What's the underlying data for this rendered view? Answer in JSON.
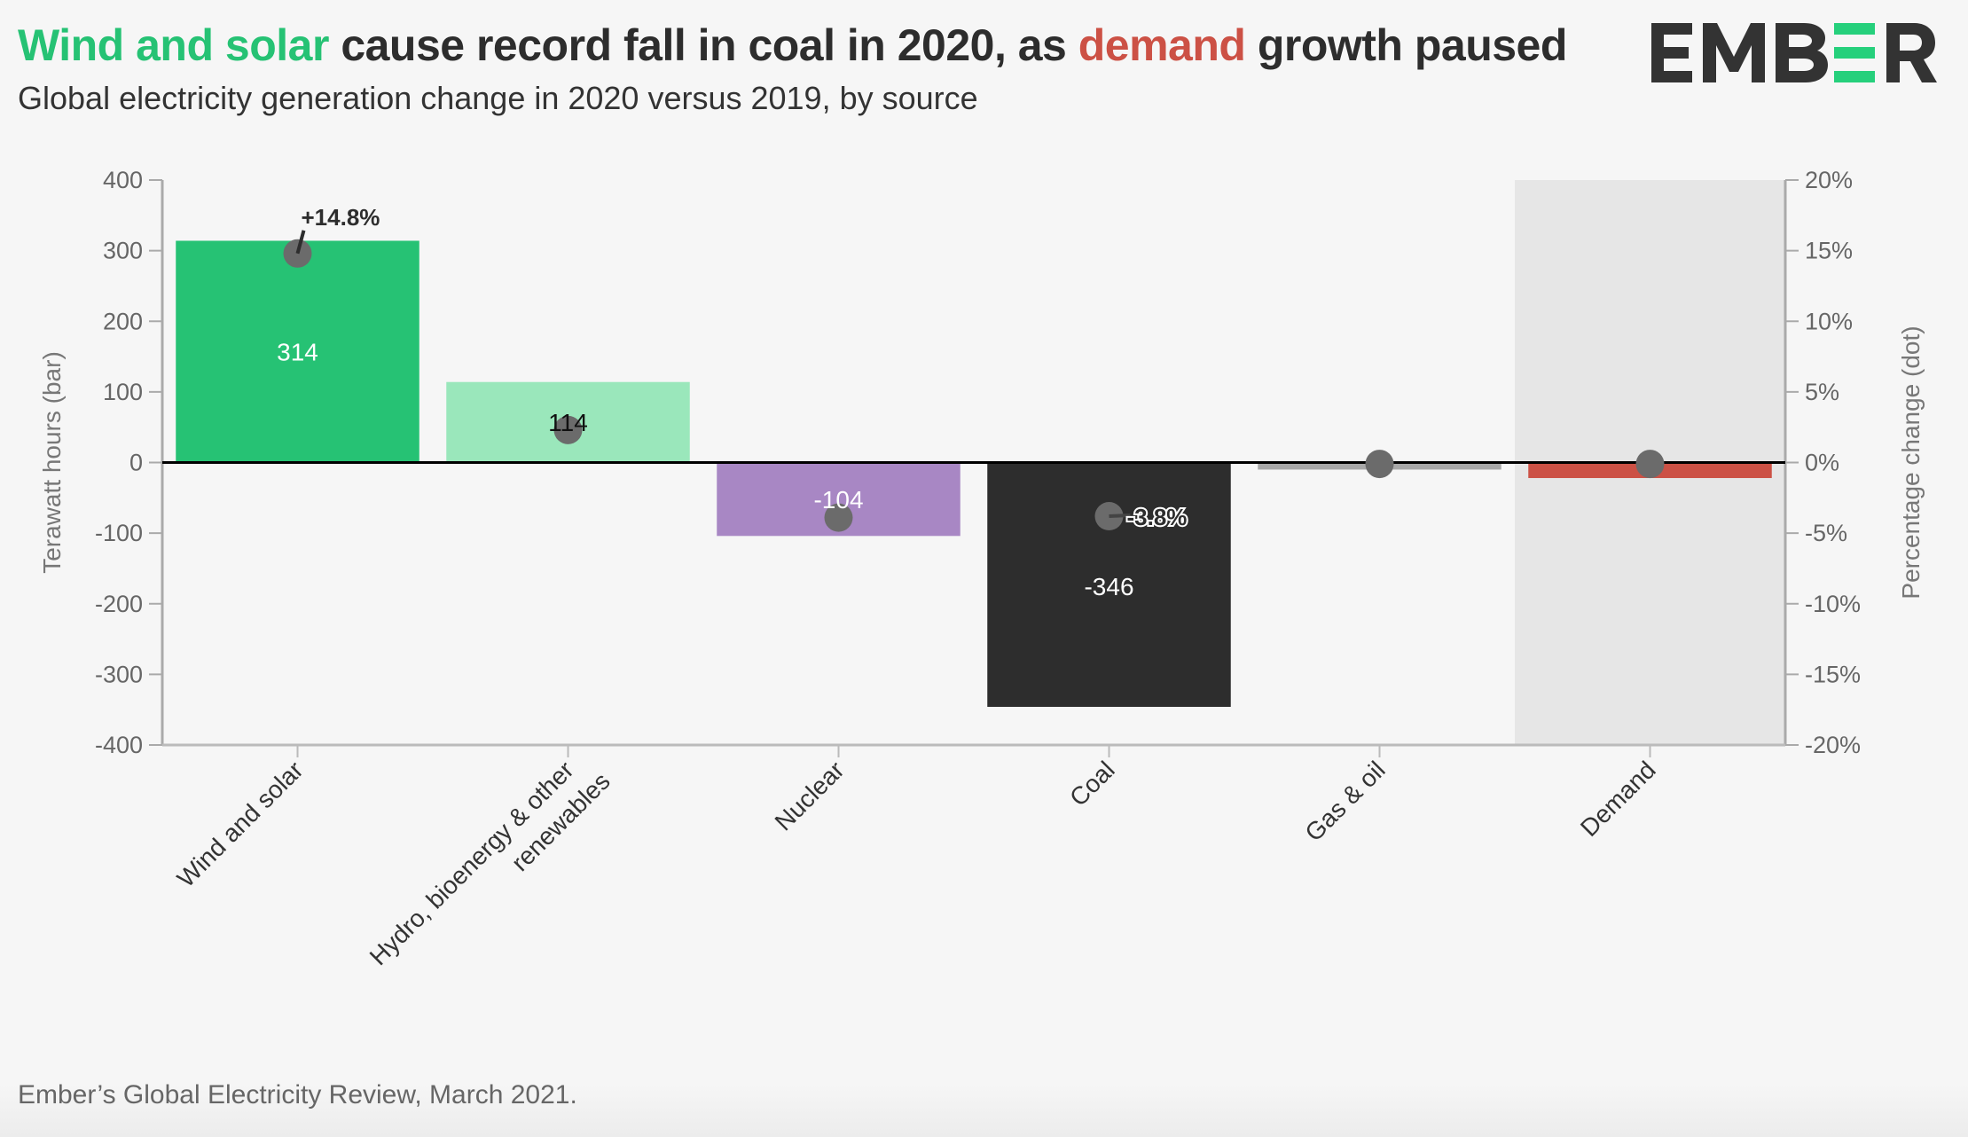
{
  "header": {
    "title_parts": [
      {
        "text": "Wind and solar",
        "color": "#26c274"
      },
      {
        "text": " cause record fall in coal in 2020, as ",
        "color": "#2d2d2d"
      },
      {
        "text": "demand",
        "color": "#cc5145"
      },
      {
        "text": " growth paused",
        "color": "#2d2d2d"
      }
    ],
    "subtitle": "Global electricity generation change in 2020 versus 2019, by source",
    "logo_text": "EMBER"
  },
  "footer": {
    "source": "Ember’s Global Electricity Review, March 2021."
  },
  "chart_data": {
    "type": "bar",
    "title": "Wind and solar cause record fall in coal in 2020, as demand growth paused",
    "subtitle": "Global electricity generation change in 2020 versus 2019, by source",
    "categories": [
      "Wind and solar",
      "Hydro, bioenergy & other renewables",
      "Nuclear",
      "Coal",
      "Gas & oil",
      "Demand"
    ],
    "category_label_lines": [
      [
        "Wind and solar"
      ],
      [
        "Hydro, bioenergy & other",
        "renewables"
      ],
      [
        "Nuclear"
      ],
      [
        "Coal"
      ],
      [
        "Gas & oil"
      ],
      [
        "Demand"
      ]
    ],
    "series": [
      {
        "name": "Terawatt hours (bar)",
        "axis": "left",
        "values": [
          314,
          114,
          -104,
          -346,
          -10,
          -22
        ],
        "colors": [
          "#26c274",
          "#9ae7bb",
          "#a887c4",
          "#2d2d2d",
          "#a8a8a8",
          "#cc5145"
        ],
        "labels": [
          "314",
          "114",
          "-104",
          "-346",
          "",
          ""
        ],
        "label_colors": [
          "#ffffff",
          "#111111",
          "#ffffff",
          "#ffffff",
          "",
          ""
        ]
      },
      {
        "name": "Percentage change (dot)",
        "axis": "right",
        "values": [
          14.8,
          2.3,
          -3.9,
          -3.8,
          -0.1,
          -0.1
        ],
        "color": "#6b6b6b",
        "annotations": [
          "+14.8%",
          "",
          "",
          "-3.8%",
          "",
          ""
        ]
      }
    ],
    "ylabel": "Terawatt hours (bar)",
    "y2label": "Percentage change (dot)",
    "ylim": [
      -400,
      400
    ],
    "yticks": [
      400,
      300,
      200,
      100,
      0,
      -100,
      -200,
      -300,
      -400
    ],
    "y2lim": [
      -20,
      20
    ],
    "y2ticks": [
      "20%",
      "15%",
      "10%",
      "5%",
      "0%",
      "-5%",
      "-10%",
      "-15%",
      "-20%"
    ],
    "highlight_category": "Demand",
    "highlight_color": "#e6e6e6",
    "grid": false,
    "legend": "none"
  }
}
